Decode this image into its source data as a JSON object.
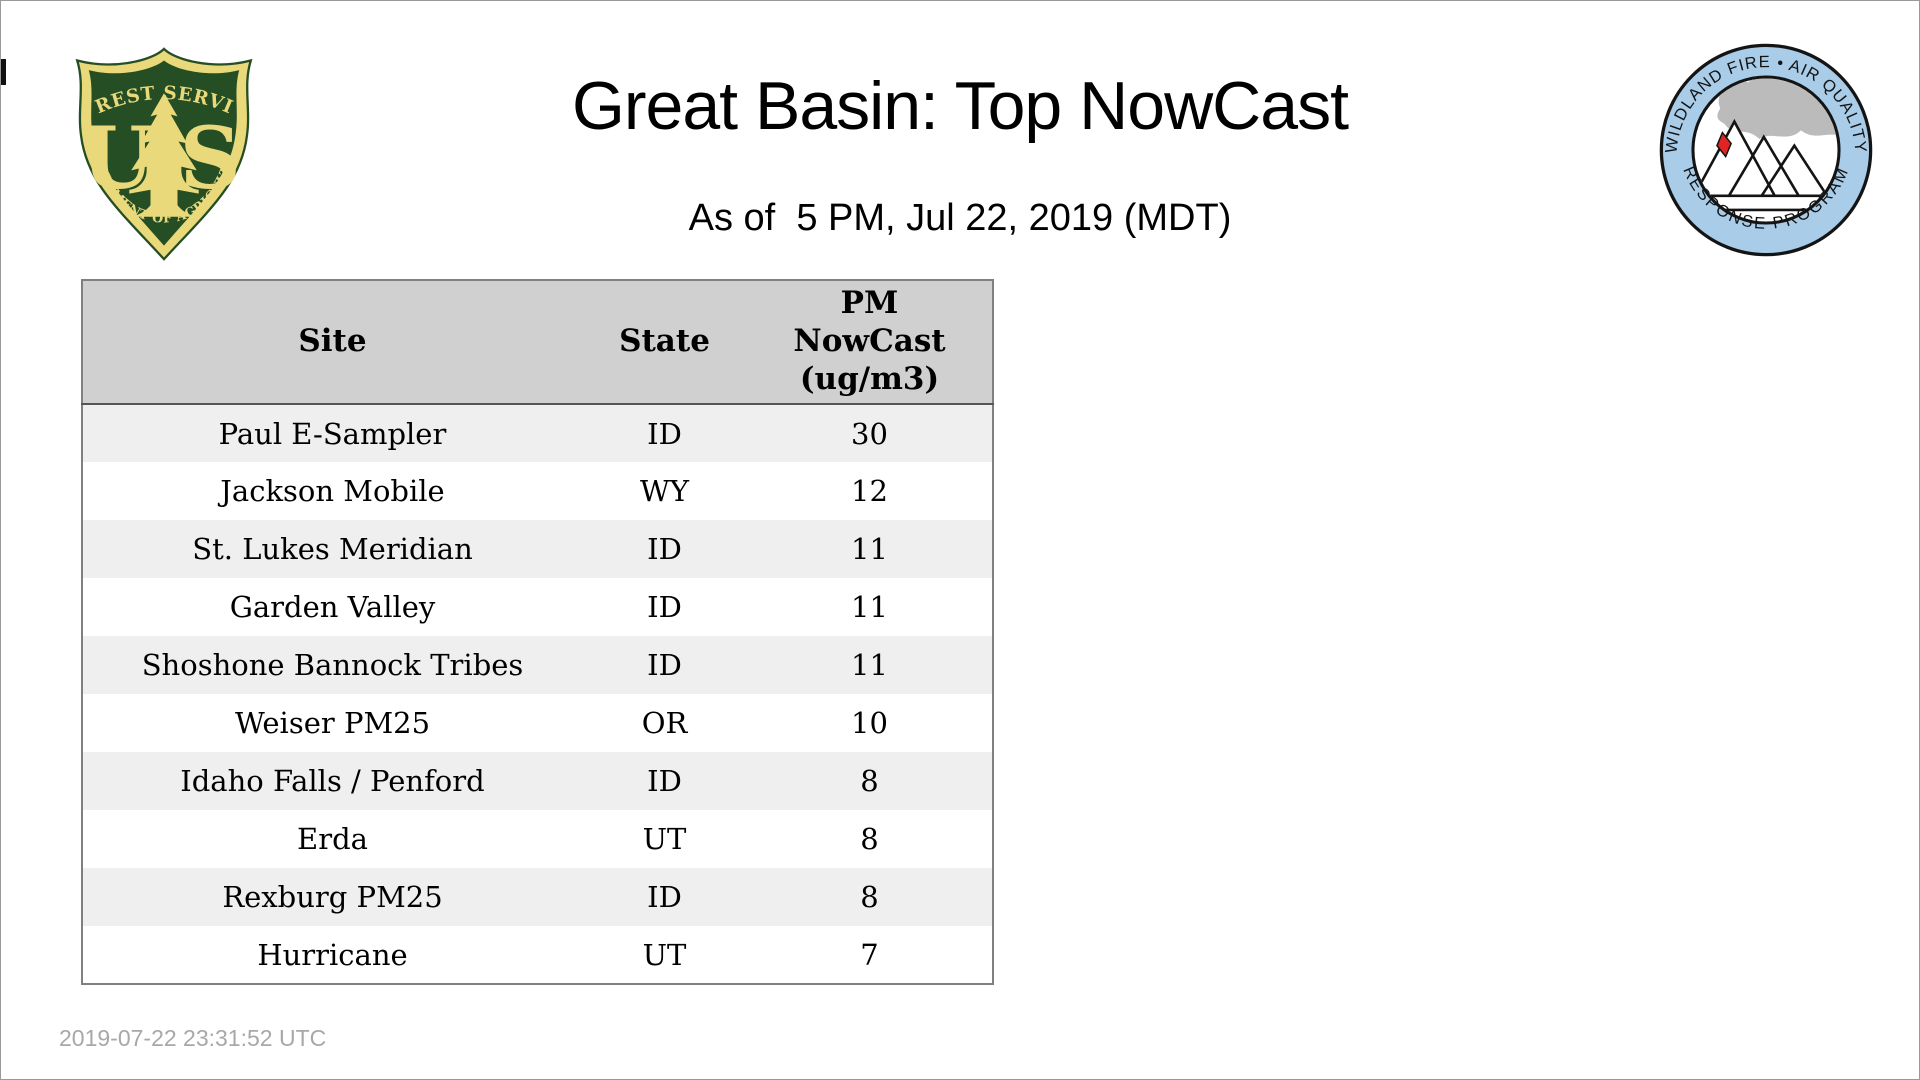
{
  "page": {
    "title": "Great Basin: Top NowCast",
    "subtitle": "As of  5 PM, Jul 22, 2019 (MDT)",
    "footer_timestamp": "2019-07-22 23:31:52 UTC"
  },
  "logos": {
    "forest_service": {
      "top_text": "FOREST SERVICE",
      "bottom_text": "DEPARTMENT OF AGRICULTURE",
      "letter_u": "U",
      "letter_s": "S",
      "green": "#254e25",
      "gold": "#e9d97b"
    },
    "wfaqrp": {
      "top_text": "WILDLAND FIRE • AIR QUALITY",
      "bottom_text": "RESPONSE PROGRAM",
      "ring_color": "#a9cce8",
      "smoke_color": "#bbbbbb",
      "flame_color": "#e02424",
      "outline_color": "#141414"
    }
  },
  "table": {
    "header": {
      "site": "Site",
      "state": "State",
      "pm_lines": [
        "PM",
        "NowCast",
        "(ug/m3)"
      ]
    },
    "rows": [
      {
        "site": "Paul E-Sampler",
        "state": "ID",
        "value": "30"
      },
      {
        "site": "Jackson Mobile",
        "state": "WY",
        "value": "12"
      },
      {
        "site": "St. Lukes Meridian",
        "state": "ID",
        "value": "11"
      },
      {
        "site": "Garden Valley",
        "state": "ID",
        "value": "11"
      },
      {
        "site": "Shoshone Bannock Tribes",
        "state": "ID",
        "value": "11"
      },
      {
        "site": "Weiser PM25",
        "state": "OR",
        "value": "10"
      },
      {
        "site": "Idaho Falls / Penford",
        "state": "ID",
        "value": "8"
      },
      {
        "site": "Erda",
        "state": "UT",
        "value": "8"
      },
      {
        "site": "Rexburg PM25",
        "state": "ID",
        "value": "8"
      },
      {
        "site": "Hurricane",
        "state": "UT",
        "value": "7"
      }
    ],
    "colors": {
      "header_bg": "#d0d0d0",
      "row_stripe_bg": "#efefef",
      "row_plain_bg": "#ffffff",
      "outer_border": "#808080",
      "header_rule": "#555555"
    }
  },
  "chart_data": {
    "type": "table",
    "title": "Great Basin: Top NowCast",
    "columns": [
      "Site",
      "State",
      "PM NowCast (ug/m3)"
    ],
    "values": [
      [
        "Paul E-Sampler",
        "ID",
        30
      ],
      [
        "Jackson Mobile",
        "WY",
        12
      ],
      [
        "St. Lukes Meridian",
        "ID",
        11
      ],
      [
        "Garden Valley",
        "ID",
        11
      ],
      [
        "Shoshone Bannock Tribes",
        "ID",
        11
      ],
      [
        "Weiser PM25",
        "OR",
        10
      ],
      [
        "Idaho Falls / Penford",
        "ID",
        8
      ],
      [
        "Erda",
        "UT",
        8
      ],
      [
        "Rexburg PM25",
        "ID",
        8
      ],
      [
        "Hurricane",
        "UT",
        7
      ]
    ]
  }
}
